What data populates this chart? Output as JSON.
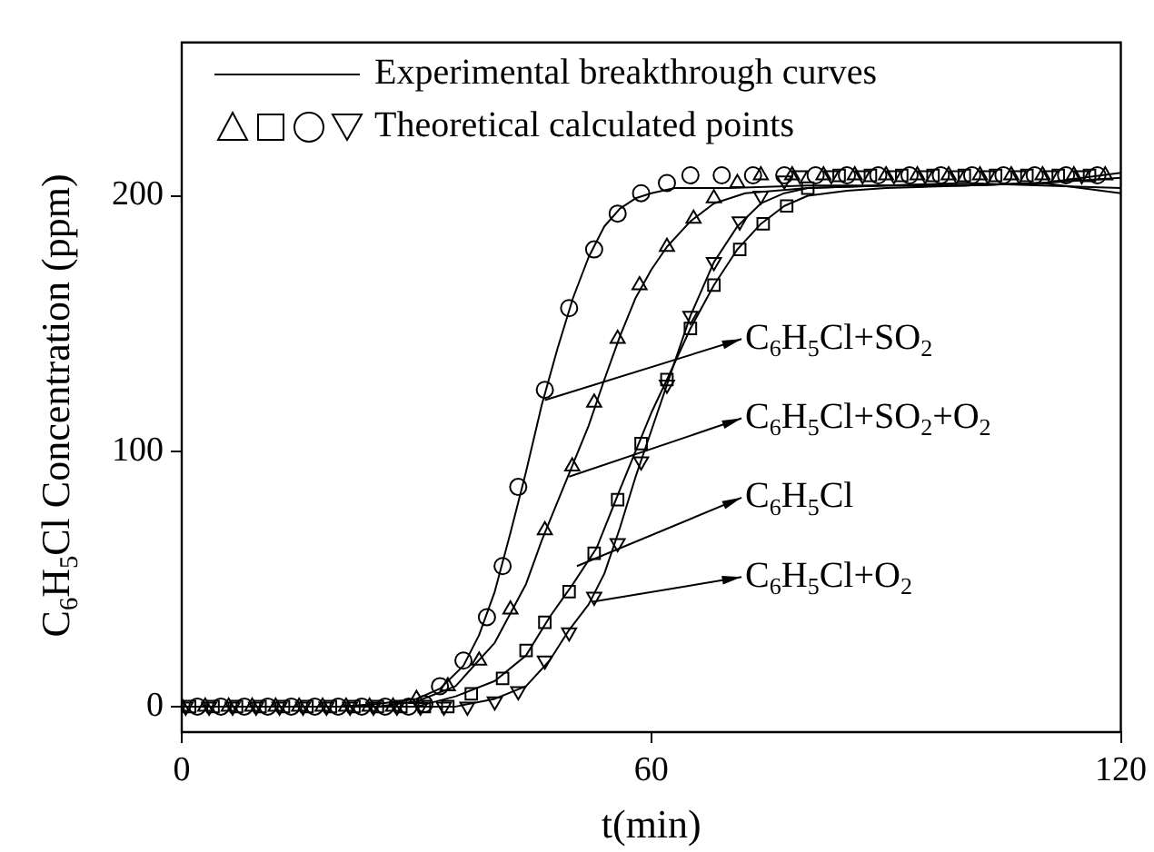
{
  "chart_data": {
    "type": "line",
    "xlabel": "t(min)",
    "ylabel": "C$_{6}$H$_{5}$Cl Concentration (ppm)",
    "xlim": [
      0,
      120
    ],
    "xticks": [
      0,
      60,
      120
    ],
    "ylim": [
      -10,
      260
    ],
    "yticks": [
      0,
      100,
      200
    ],
    "grid": false,
    "legend": "top left",
    "line_style": "solid",
    "marker": "none",
    "series": [
      {
        "name": "Experimental breakthrough curves",
        "type": "line",
        "color": "#000000",
        "x": [
          0,
          5,
          10,
          15,
          20,
          25,
          30,
          33,
          36,
          38,
          40,
          42,
          44,
          46,
          48,
          50,
          52,
          54,
          56,
          58,
          60,
          63,
          70,
          80,
          90,
          100,
          110,
          120
        ],
        "values": [
          0,
          0,
          0,
          0,
          0,
          1,
          3,
          7,
          16,
          28,
          45,
          68,
          92,
          118,
          140,
          160,
          176,
          188,
          195,
          199,
          201,
          203,
          203,
          204,
          204,
          205,
          204,
          203
        ]
      },
      {
        "type": "line",
        "color": "#000000",
        "x": [
          0,
          5,
          10,
          15,
          20,
          25,
          30,
          35,
          40,
          44,
          46,
          48,
          50,
          52,
          54,
          56,
          58,
          60,
          62,
          65,
          68,
          72,
          80,
          90,
          100,
          110,
          120
        ],
        "values": [
          0,
          0,
          0,
          0,
          0,
          0,
          2,
          8,
          25,
          48,
          65,
          80,
          95,
          110,
          128,
          145,
          160,
          171,
          180,
          190,
          197,
          201,
          203,
          204,
          204,
          205,
          207
        ]
      },
      {
        "type": "line",
        "color": "#000000",
        "x": [
          0,
          5,
          10,
          15,
          20,
          25,
          30,
          35,
          40,
          44,
          47,
          50,
          53,
          56,
          58,
          60,
          62,
          65,
          68,
          71,
          74,
          77,
          80,
          85,
          90,
          100,
          110,
          120
        ],
        "values": [
          0,
          0,
          0,
          0,
          0,
          0,
          0,
          4,
          10,
          20,
          35,
          48,
          62,
          85,
          100,
          115,
          128,
          148,
          165,
          179,
          189,
          196,
          200,
          202,
          203,
          204,
          205,
          201
        ]
      },
      {
        "type": "line",
        "color": "#000000",
        "x": [
          0,
          5,
          10,
          15,
          20,
          25,
          30,
          35,
          40,
          44,
          47,
          49.5,
          52,
          54,
          56,
          58,
          60,
          62,
          65,
          68,
          71,
          74,
          77,
          80,
          90,
          100,
          110,
          120
        ],
        "values": [
          0,
          0,
          0,
          0,
          0,
          0,
          0,
          0,
          3,
          8,
          18,
          30,
          40,
          52,
          70,
          90,
          108,
          126,
          153,
          174,
          188,
          197,
          201,
          203,
          204,
          204,
          205,
          209
        ]
      },
      {
        "name": "Theoretical calculated points",
        "type": "scatter",
        "marker": "triangle",
        "color": "#000000",
        "x": [
          0,
          3,
          6,
          9,
          12,
          15,
          18,
          21,
          24,
          27,
          30,
          34,
          38,
          42,
          46.4,
          49.9,
          52.7,
          55.7,
          58.5,
          62,
          65.4,
          68,
          71,
          74,
          78,
          82,
          86,
          90,
          94,
          98,
          102,
          106,
          110,
          114,
          118
        ],
        "values": [
          0,
          0,
          0,
          0,
          0,
          0,
          0,
          0,
          0,
          0,
          3,
          8,
          18,
          38,
          69,
          94,
          119,
          144,
          165,
          180,
          191,
          199,
          205,
          208,
          208,
          208,
          208,
          208,
          208,
          208,
          208,
          208,
          208,
          208,
          208
        ]
      },
      {
        "type": "scatter",
        "marker": "square",
        "color": "#000000",
        "x": [
          1,
          4,
          7,
          10,
          13,
          16,
          19,
          22,
          25,
          28,
          31,
          34,
          37,
          41,
          44,
          46.4,
          49.5,
          52.7,
          55.7,
          58.7,
          62,
          65,
          68,
          71.3,
          74.3,
          77.3,
          80,
          84,
          88,
          92,
          96,
          100,
          104,
          108,
          112,
          116
        ],
        "values": [
          0,
          0,
          0,
          0,
          0,
          0,
          0,
          0,
          0,
          0,
          0,
          0,
          5,
          11,
          22,
          33,
          45,
          60,
          81,
          103,
          128,
          148,
          165,
          179,
          189,
          196,
          203,
          208,
          208,
          208,
          208,
          208,
          208,
          208,
          208,
          208
        ]
      },
      {
        "type": "scatter",
        "marker": "circle",
        "color": "#000000",
        "x": [
          2,
          5,
          8,
          11,
          14,
          17,
          20,
          23,
          26,
          29,
          31,
          33,
          36,
          39,
          41,
          43,
          46.4,
          49.5,
          52.7,
          55.7,
          58.7,
          62,
          65,
          69,
          73,
          77,
          81,
          85,
          89,
          93,
          97,
          101,
          105,
          109,
          113,
          117
        ],
        "values": [
          0,
          0,
          0,
          0,
          0,
          0,
          0,
          0,
          0,
          0,
          1,
          8,
          18,
          35,
          55,
          86,
          124,
          156,
          179,
          193,
          201,
          205,
          208,
          208,
          208,
          208,
          208,
          208,
          208,
          208,
          208,
          208,
          208,
          208,
          208,
          208
        ]
      },
      {
        "type": "scatter",
        "marker": "triangle-down",
        "color": "#000000",
        "x": [
          0.5,
          3.5,
          6.5,
          9.5,
          12.5,
          15.5,
          18.5,
          21.5,
          24.5,
          27.5,
          30.5,
          33.5,
          36.5,
          40,
          43,
          46.4,
          49.5,
          52.7,
          55.7,
          58.7,
          62,
          65,
          68,
          71.3,
          74,
          77,
          79,
          83,
          87,
          91,
          95,
          99,
          103,
          107,
          111,
          115
        ],
        "values": [
          0,
          0,
          0,
          0,
          0,
          0,
          0,
          0,
          0,
          0,
          0,
          0,
          0,
          2,
          6,
          18,
          29,
          43,
          64,
          96,
          126,
          153,
          174,
          190,
          200,
          206,
          208,
          208,
          208,
          208,
          208,
          208,
          208,
          208,
          208,
          208
        ]
      }
    ],
    "annotations": [
      {
        "text": "C$_{6}$H$_{5}$Cl+SO$_{2}$",
        "x": 46.4,
        "y": 120
      },
      {
        "text": "C$_{6}$H$_{5}$Cl+SO$_{2}$+O$_{2}$",
        "x": 49.5,
        "y": 90
      },
      {
        "text": "C$_{6}$H$_{5}$Cl",
        "x": 50.5,
        "y": 55
      },
      {
        "text": "C$_{6}$H$_{5}$Cl+O$_{2}$",
        "x": 52.5,
        "y": 41
      }
    ]
  }
}
